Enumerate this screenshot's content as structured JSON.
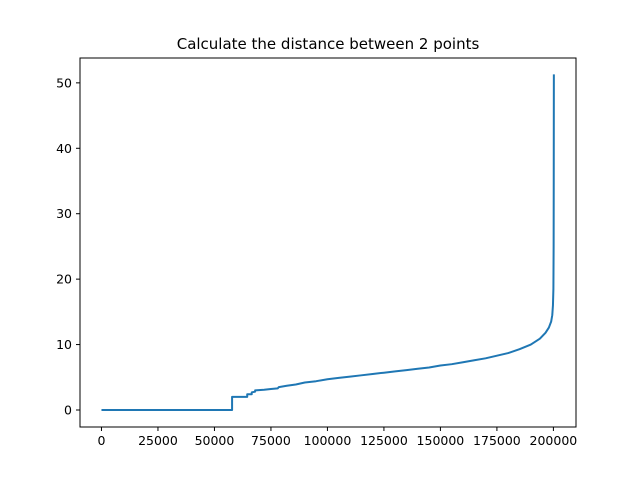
{
  "chart_data": {
    "type": "line",
    "title": "Calculate the distance between 2 points",
    "xlabel": "",
    "ylabel": "",
    "xlim": [
      -9500,
      210000
    ],
    "ylim": [
      -2.6,
      53.8
    ],
    "xticks": [
      0,
      25000,
      50000,
      75000,
      100000,
      125000,
      150000,
      175000,
      200000
    ],
    "yticks": [
      0,
      10,
      20,
      30,
      40,
      50
    ],
    "grid": false,
    "series": [
      {
        "color": "#1f77b4",
        "points": [
          [
            0,
            0.0
          ],
          [
            57800,
            0.0
          ],
          [
            57800,
            2.0
          ],
          [
            64500,
            2.0
          ],
          [
            64500,
            2.4
          ],
          [
            66500,
            2.4
          ],
          [
            66500,
            2.7
          ],
          [
            68000,
            2.8
          ],
          [
            68000,
            3.0
          ],
          [
            72000,
            3.1
          ],
          [
            75000,
            3.2
          ],
          [
            78000,
            3.3
          ],
          [
            78500,
            3.5
          ],
          [
            82000,
            3.7
          ],
          [
            86000,
            3.9
          ],
          [
            90000,
            4.2
          ],
          [
            95000,
            4.4
          ],
          [
            100000,
            4.7
          ],
          [
            105000,
            4.9
          ],
          [
            110000,
            5.1
          ],
          [
            115000,
            5.3
          ],
          [
            120000,
            5.5
          ],
          [
            125000,
            5.7
          ],
          [
            130000,
            5.9
          ],
          [
            135000,
            6.1
          ],
          [
            140000,
            6.3
          ],
          [
            145000,
            6.5
          ],
          [
            150000,
            6.8
          ],
          [
            155000,
            7.0
          ],
          [
            160000,
            7.3
          ],
          [
            165000,
            7.6
          ],
          [
            170000,
            7.9
          ],
          [
            175000,
            8.3
          ],
          [
            180000,
            8.7
          ],
          [
            185000,
            9.3
          ],
          [
            190000,
            10.0
          ],
          [
            194000,
            10.9
          ],
          [
            196500,
            11.8
          ],
          [
            198000,
            12.6
          ],
          [
            199000,
            13.5
          ],
          [
            199500,
            14.5
          ],
          [
            199800,
            16.0
          ],
          [
            200000,
            18.5
          ],
          [
            200100,
            25.0
          ],
          [
            200150,
            35.0
          ],
          [
            200200,
            51.3
          ]
        ]
      }
    ]
  }
}
